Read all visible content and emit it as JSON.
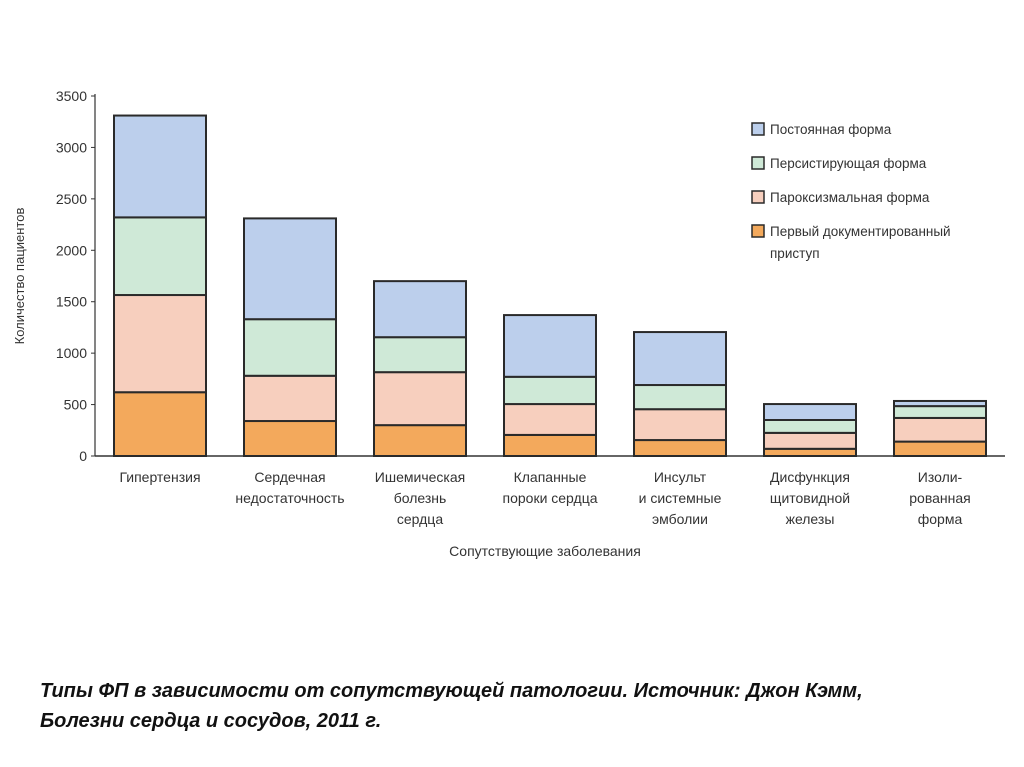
{
  "chart_data": {
    "type": "bar",
    "stacked": true,
    "title": "",
    "xlabel": "Сопутствующие заболевания",
    "ylabel": "Количество пациентов",
    "ylim": [
      0,
      3500
    ],
    "yticks": [
      0,
      500,
      1000,
      1500,
      2000,
      2500,
      3000,
      3500
    ],
    "grid": false,
    "legend_position": "top-right",
    "categories": [
      [
        "Гипертензия"
      ],
      [
        "Сердечная",
        "недостаточность"
      ],
      [
        "Ишемическая",
        "болезнь",
        "сердца"
      ],
      [
        "Клапанные",
        "пороки сердца"
      ],
      [
        "Инсульт",
        "и системные",
        "эмболии"
      ],
      [
        "Дисфункция",
        "щитовидной",
        "железы"
      ],
      [
        "Изоли-",
        "рованная",
        "форма"
      ]
    ],
    "series": [
      {
        "name": "Первый документированный приступ",
        "legend_lines": [
          "Первый документированный",
          "приступ"
        ],
        "color": "#f3a95c",
        "values": [
          620,
          340,
          300,
          205,
          155,
          70,
          140
        ]
      },
      {
        "name": "Пароксизмальная форма",
        "legend_lines": [
          "Пароксизмальная форма"
        ],
        "color": "#f7cfbe",
        "values": [
          945,
          440,
          515,
          300,
          300,
          155,
          230
        ]
      },
      {
        "name": "Персистирующая форма",
        "legend_lines": [
          "Персистирующая форма"
        ],
        "color": "#cfe9d7",
        "values": [
          755,
          550,
          340,
          265,
          235,
          125,
          115
        ]
      },
      {
        "name": "Постоянная форма",
        "legend_lines": [
          "Постоянная форма"
        ],
        "color": "#bccfec",
        "values": [
          990,
          980,
          545,
          600,
          515,
          155,
          50
        ]
      }
    ]
  },
  "caption": "Типы ФП в зависимости от сопутствующей патологии.  Источник: Джон Кэмм, Болезни сердца и сосудов, 2011 г."
}
